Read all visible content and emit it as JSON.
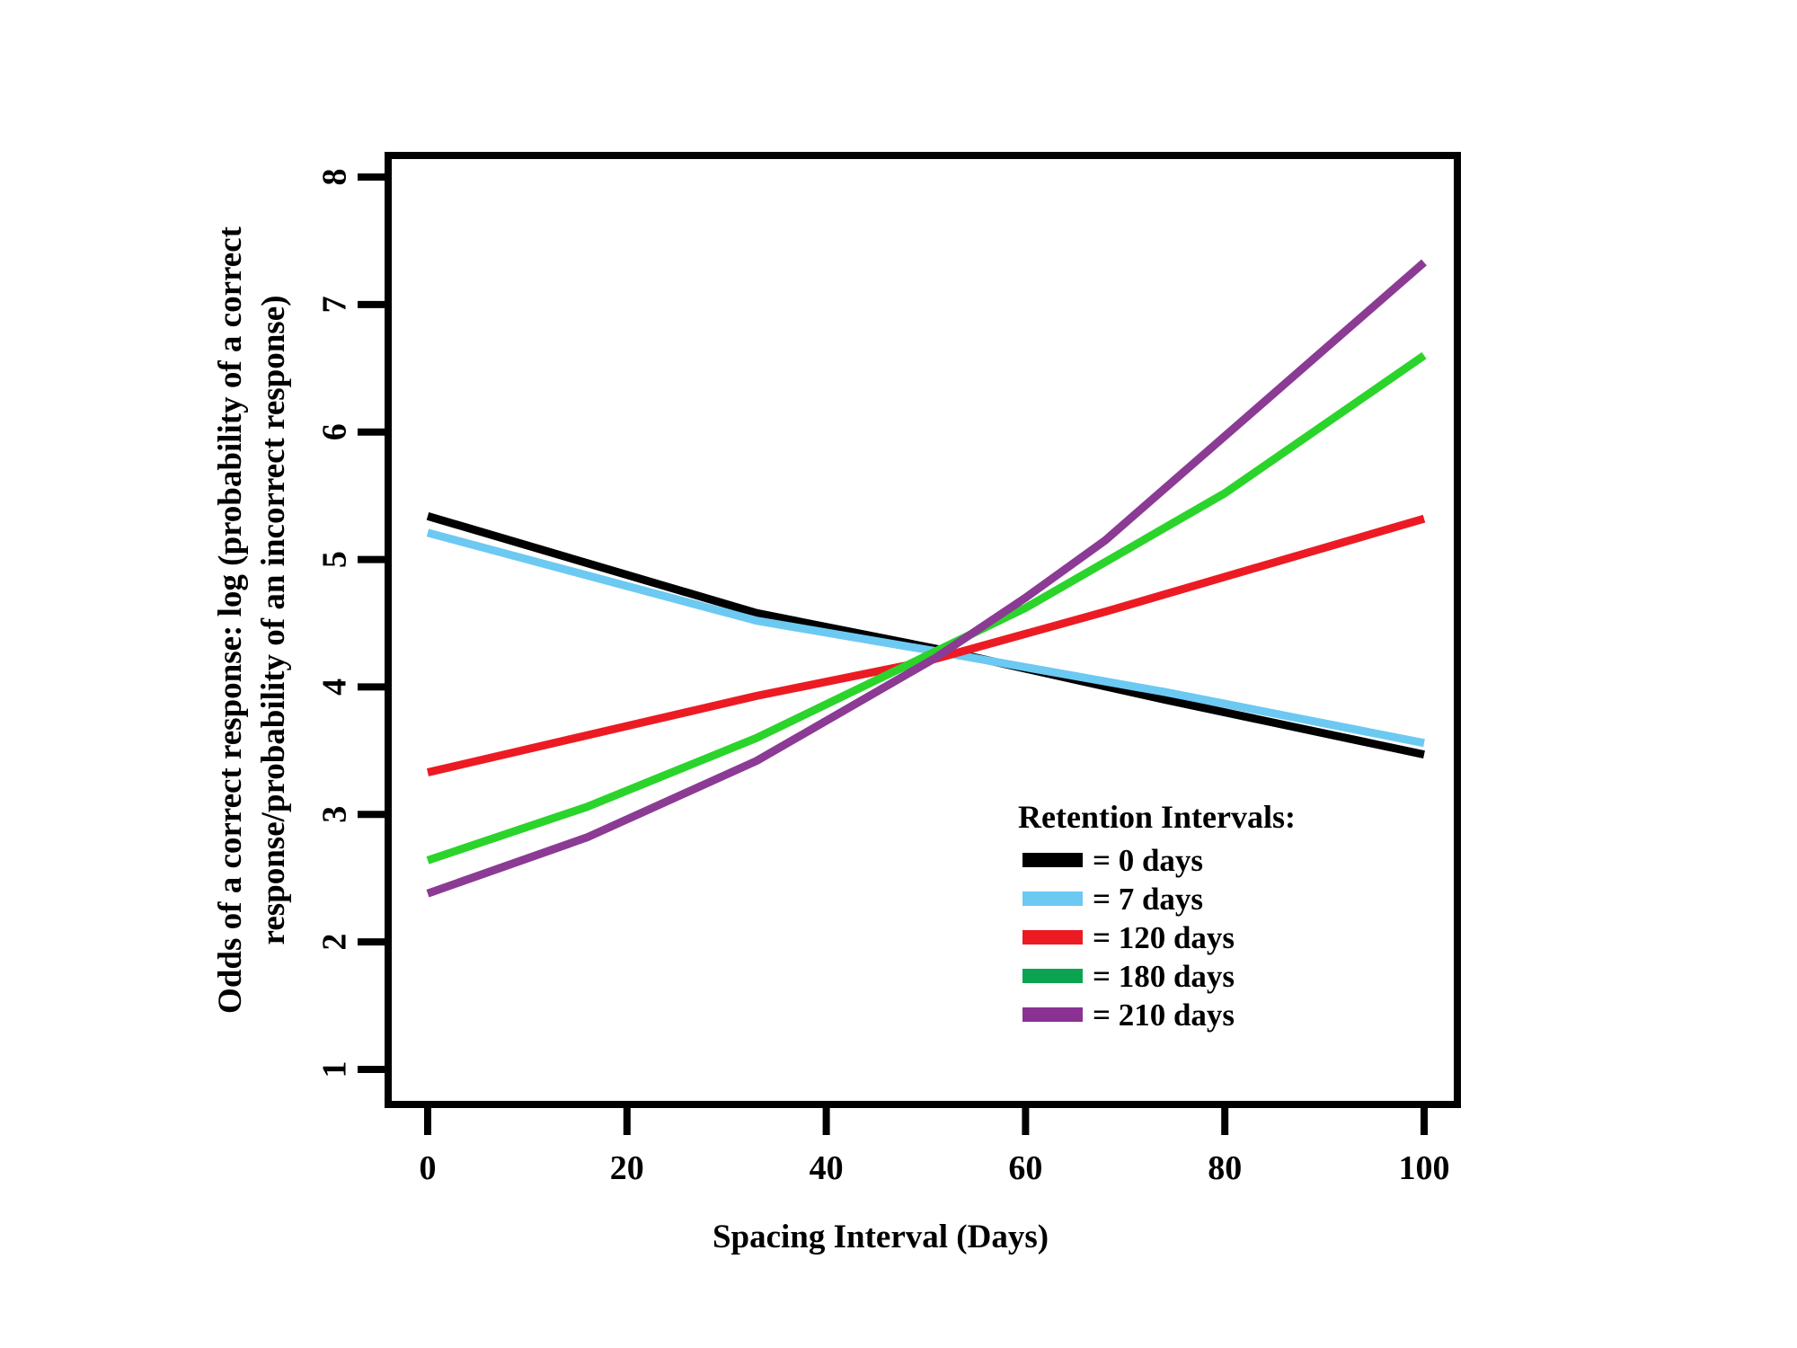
{
  "chart_data": {
    "type": "line",
    "title": "",
    "xlabel": "Spacing Interval (Days)",
    "ylabel_line1": "Odds of a correct response: log (probability of a correct",
    "ylabel_line2": "response/probability of an incorrect response)",
    "x_ticks": [
      "0",
      "20",
      "40",
      "60",
      "80",
      "100"
    ],
    "x_tick_values": [
      0,
      20,
      40,
      60,
      80,
      100
    ],
    "y_ticks": [
      "1",
      "2",
      "3",
      "4",
      "5",
      "6",
      "7",
      "8"
    ],
    "y_tick_values": [
      1,
      2,
      3,
      4,
      5,
      6,
      7,
      8
    ],
    "xlim": [
      -4,
      104
    ],
    "ylim": [
      0.72,
      8.28
    ],
    "grid": false,
    "legend": {
      "title": "Retention Intervals:",
      "position": "inside-bottom-right",
      "entries": [
        {
          "label": "= 0 days",
          "color": "#000000"
        },
        {
          "label": "= 7 days",
          "color": "#6CC9F2"
        },
        {
          "label": "= 120 days",
          "color": "#EC1B23"
        },
        {
          "label": "= 180 days",
          "color": "#0AA350"
        },
        {
          "label": "= 210 days",
          "color": "#8A3194"
        }
      ]
    },
    "series": [
      {
        "name": "0 days",
        "color": "#000000",
        "points": [
          [
            0,
            5.34
          ],
          [
            33,
            4.58
          ],
          [
            51,
            4.3
          ],
          [
            74,
            3.9
          ],
          [
            100,
            3.47
          ]
        ]
      },
      {
        "name": "7 days",
        "color": "#6CC9F2",
        "points": [
          [
            0,
            5.21
          ],
          [
            33,
            4.52
          ],
          [
            51,
            4.28
          ],
          [
            74,
            3.96
          ],
          [
            100,
            3.56
          ]
        ]
      },
      {
        "name": "120 days",
        "color": "#EC1B23",
        "points": [
          [
            0,
            3.33
          ],
          [
            33,
            3.93
          ],
          [
            50,
            4.2
          ],
          [
            68,
            4.59
          ],
          [
            100,
            5.32
          ]
        ]
      },
      {
        "name": "180 days",
        "color": "#2BD42B",
        "points": [
          [
            0,
            2.64
          ],
          [
            16,
            3.06
          ],
          [
            33,
            3.6
          ],
          [
            51,
            4.28
          ],
          [
            60,
            4.62
          ],
          [
            80,
            5.52
          ],
          [
            100,
            6.6
          ]
        ]
      },
      {
        "name": "210 days",
        "color": "#8B3B94",
        "points": [
          [
            0,
            2.38
          ],
          [
            16,
            2.82
          ],
          [
            33,
            3.42
          ],
          [
            51,
            4.23
          ],
          [
            60,
            4.7
          ],
          [
            68,
            5.15
          ],
          [
            100,
            7.33
          ]
        ]
      }
    ]
  }
}
